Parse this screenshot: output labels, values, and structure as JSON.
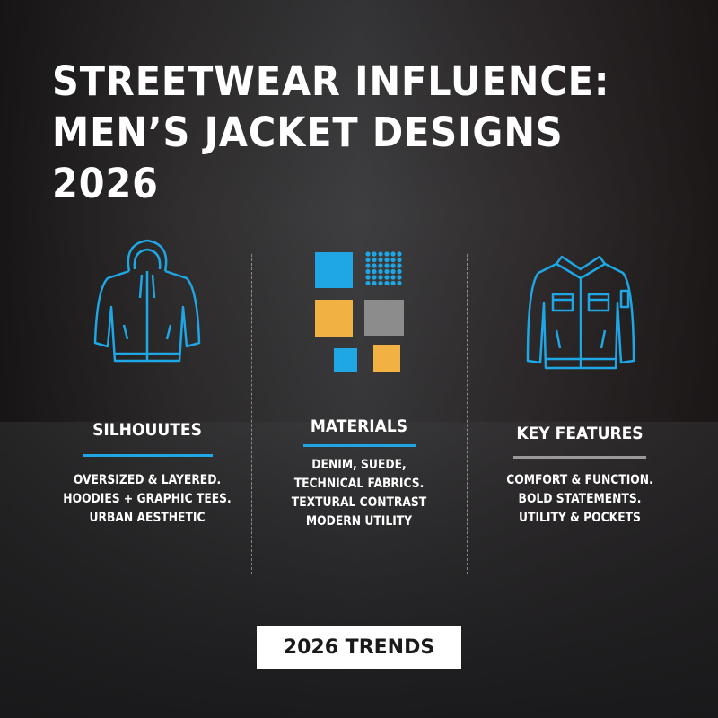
{
  "title_lines": [
    "STREETWEAR INFLUENCE:",
    "MEN’S JACKET DESIGNS 2026"
  ],
  "columns": [
    {
      "heading": "SILHOUUTES",
      "icon": "hoodie-jacket-icon",
      "lines": [
        "OVERSIZED & LAYERED.",
        "HOODIES + GRAPHIC TEES.",
        "URBAN AESTHETIC"
      ],
      "underline_color": "#1ea7e4"
    },
    {
      "heading": "MATERIALS",
      "icon": "fabric-swatches-icon",
      "lines": [
        "DENIM, SUEDE,",
        "TECHNICAL FABRICS.",
        "TEXTURAL CONTRAST",
        "MODERN UTILITY"
      ],
      "underline_color": "#1ea7e4"
    },
    {
      "heading": "KEY FEATURES",
      "icon": "utility-jacket-icon",
      "lines": [
        "COMFORT & FUNCTION.",
        "BOLD STATEMENTS.",
        "UTILITY & POCKETS"
      ],
      "underline_color": "#9a9a9a"
    }
  ],
  "badge": "2026 TRENDS",
  "colors": {
    "blue": "#1ea7e4",
    "orange": "#f2b143",
    "gray": "#8c8c8c"
  }
}
